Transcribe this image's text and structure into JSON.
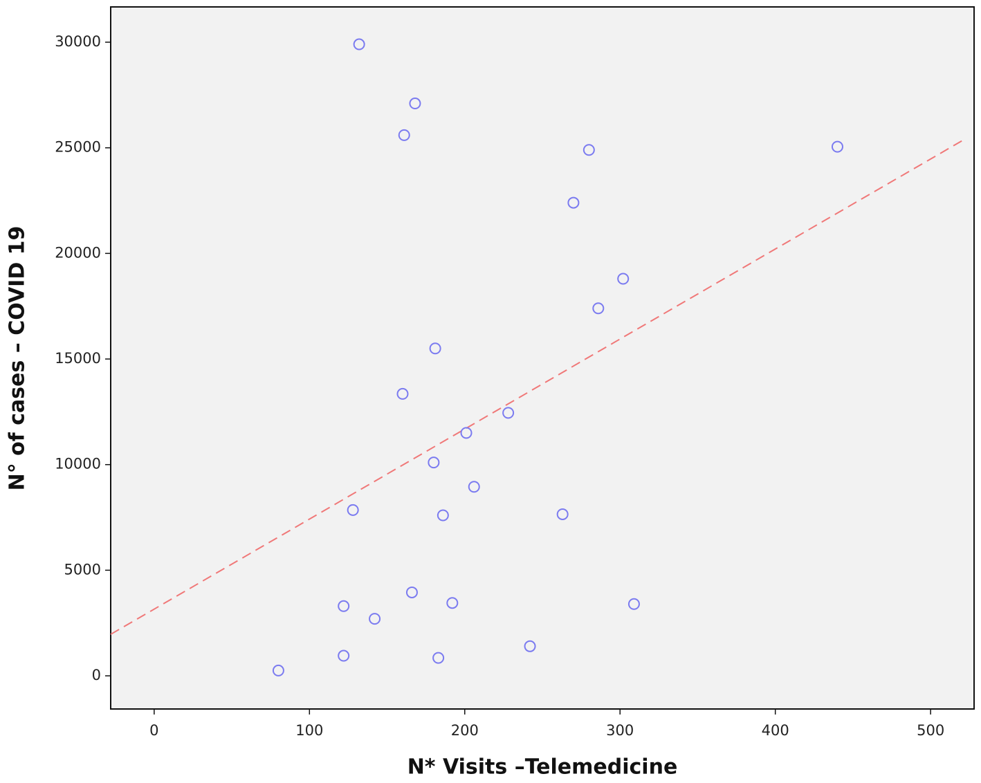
{
  "chart_data": {
    "type": "scatter",
    "x_label": "N* Visits –Telemedicine",
    "y_label": "N° of cases – COVID 19",
    "series": [
      {
        "color": "#7b7bf0",
        "x": [
          132,
          168,
          161,
          280,
          440,
          270,
          302,
          286,
          181,
          160,
          228,
          201,
          180,
          206,
          128,
          186,
          263,
          166,
          122,
          192,
          309,
          142,
          80,
          122,
          183,
          242
        ],
        "values": [
          29900,
          27100,
          25600,
          24900,
          25050,
          22400,
          18800,
          17400,
          15500,
          13350,
          12450,
          11500,
          10100,
          8950,
          7850,
          7600,
          7650,
          3950,
          3300,
          3450,
          3400,
          2700,
          250,
          950,
          850,
          1400
        ]
      }
    ],
    "fit_line": {
      "color": "#f07878",
      "x": [
        -28,
        523
      ],
      "y": [
        1965,
        25450
      ]
    },
    "xlim": [
      -28,
      528
    ],
    "ylim": [
      -1570,
      31670
    ],
    "xticks": [
      0,
      100,
      200,
      300,
      400,
      500
    ],
    "yticks": [
      0,
      5000,
      10000,
      15000,
      20000,
      25000,
      30000
    ]
  }
}
